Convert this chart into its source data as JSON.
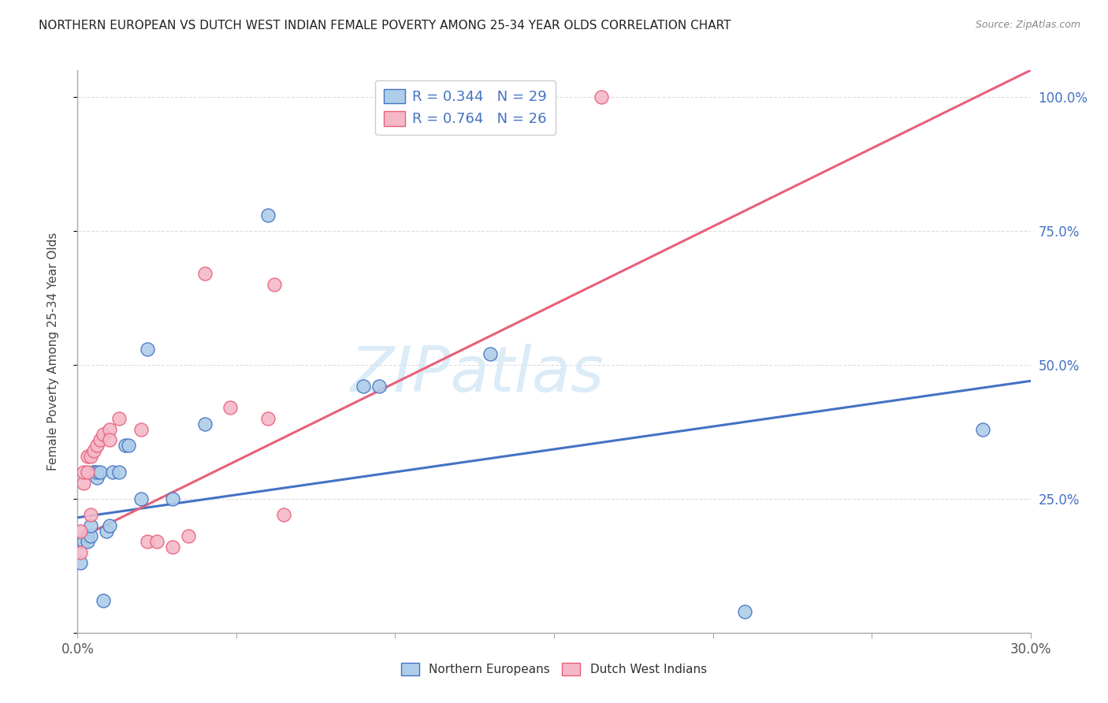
{
  "title": "NORTHERN EUROPEAN VS DUTCH WEST INDIAN FEMALE POVERTY AMONG 25-34 YEAR OLDS CORRELATION CHART",
  "source": "Source: ZipAtlas.com",
  "ylabel": "Female Poverty Among 25-34 Year Olds",
  "xlim": [
    0.0,
    0.3
  ],
  "ylim": [
    0.0,
    1.05
  ],
  "xticks": [
    0.0,
    0.05,
    0.1,
    0.15,
    0.2,
    0.25,
    0.3
  ],
  "yticks_right": [
    0.25,
    0.5,
    0.75,
    1.0
  ],
  "ytick_labels_right": [
    "25.0%",
    "50.0%",
    "75.0%",
    "100.0%"
  ],
  "blue_R": 0.344,
  "blue_N": 29,
  "pink_R": 0.764,
  "pink_N": 26,
  "blue_color": "#aecde8",
  "pink_color": "#f5b8c8",
  "blue_line_color": "#4472c4",
  "pink_line_color": "#e8607a",
  "blue_scatter_x": [
    0.001,
    0.001,
    0.002,
    0.003,
    0.003,
    0.004,
    0.004,
    0.005,
    0.005,
    0.006,
    0.006,
    0.007,
    0.008,
    0.009,
    0.01,
    0.011,
    0.013,
    0.015,
    0.016,
    0.02,
    0.022,
    0.03,
    0.04,
    0.06,
    0.09,
    0.095,
    0.13,
    0.21,
    0.285
  ],
  "blue_scatter_y": [
    0.17,
    0.13,
    0.17,
    0.18,
    0.17,
    0.18,
    0.2,
    0.3,
    0.3,
    0.29,
    0.3,
    0.3,
    0.06,
    0.19,
    0.2,
    0.3,
    0.3,
    0.35,
    0.35,
    0.25,
    0.53,
    0.25,
    0.39,
    0.78,
    0.46,
    0.46,
    0.52,
    0.04,
    0.38
  ],
  "pink_scatter_x": [
    0.001,
    0.001,
    0.002,
    0.002,
    0.003,
    0.003,
    0.004,
    0.004,
    0.005,
    0.006,
    0.007,
    0.008,
    0.01,
    0.01,
    0.013,
    0.02,
    0.022,
    0.025,
    0.03,
    0.035,
    0.04,
    0.048,
    0.06,
    0.062,
    0.065,
    0.165
  ],
  "pink_scatter_y": [
    0.19,
    0.15,
    0.28,
    0.3,
    0.3,
    0.33,
    0.33,
    0.22,
    0.34,
    0.35,
    0.36,
    0.37,
    0.38,
    0.36,
    0.4,
    0.38,
    0.17,
    0.17,
    0.16,
    0.18,
    0.67,
    0.42,
    0.4,
    0.65,
    0.22,
    1.0
  ],
  "blue_line_x0": 0.0,
  "blue_line_y0": 0.215,
  "blue_line_x1": 0.3,
  "blue_line_y1": 0.47,
  "pink_line_x0": 0.0,
  "pink_line_y0": 0.175,
  "pink_line_x1": 0.3,
  "pink_line_y1": 1.05,
  "watermark_text": "ZIPatlas",
  "watermark_color": "#cde4f5",
  "background_color": "#ffffff",
  "grid_color": "#dddddd",
  "legend_top_labels": [
    "R = 0.344   N = 29",
    "R = 0.764   N = 26"
  ],
  "legend_bottom_labels": [
    "Northern Europeans",
    "Dutch West Indians"
  ]
}
